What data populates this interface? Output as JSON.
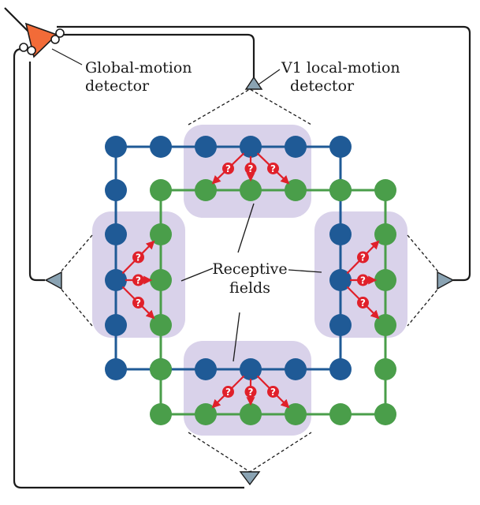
{
  "labels": {
    "global_line1": "Global-motion",
    "global_line2": "detector",
    "v1_line1": "V1 local-motion",
    "v1_line2": "detector",
    "rf_line1": "Receptive",
    "rf_line2": "fields"
  },
  "question_mark": "?",
  "colors": {
    "blue": "#1f5a96",
    "green": "#4a9e4a",
    "orange": "#f26b38",
    "gray_triangle": "#8aa3b3",
    "lavender": "#d9d2ea",
    "red": "#e0202a",
    "wire": "#1a1a1a"
  },
  "icons": {
    "global": "orange-triangle-neuron",
    "local": "gray-triangle-neuron",
    "arrow": "red-arrow"
  }
}
